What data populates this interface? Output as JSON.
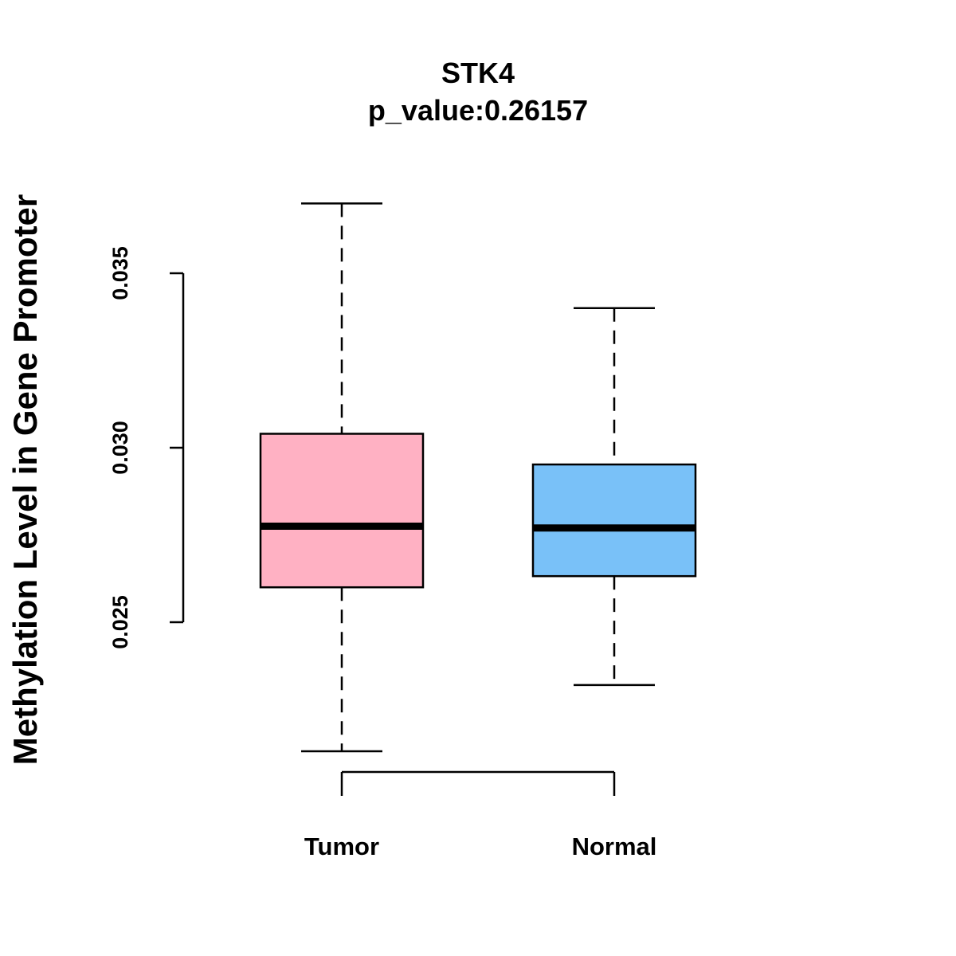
{
  "chart_data": {
    "type": "box",
    "title": "STK4",
    "subtitle": "p_value:0.26157",
    "ylabel": "Methylation Level in Gene Promoter",
    "xlabel": "",
    "categories": [
      "Tumor",
      "Normal"
    ],
    "y_ticks": [
      {
        "value": 0.025,
        "label": "0.025"
      },
      {
        "value": 0.03,
        "label": "0.030"
      },
      {
        "value": 0.035,
        "label": "0.035"
      }
    ],
    "series": [
      {
        "category": "Tumor",
        "color": "#FFB1C3",
        "whisker_low": 0.0213,
        "q1": 0.026,
        "median": 0.02775,
        "q3": 0.0304,
        "whisker_high": 0.037
      },
      {
        "category": "Normal",
        "color": "#79C1F8",
        "whisker_low": 0.0232,
        "q1": 0.02632,
        "median": 0.0277,
        "q3": 0.02952,
        "whisker_high": 0.034
      }
    ],
    "grid": false,
    "legend": "none"
  }
}
